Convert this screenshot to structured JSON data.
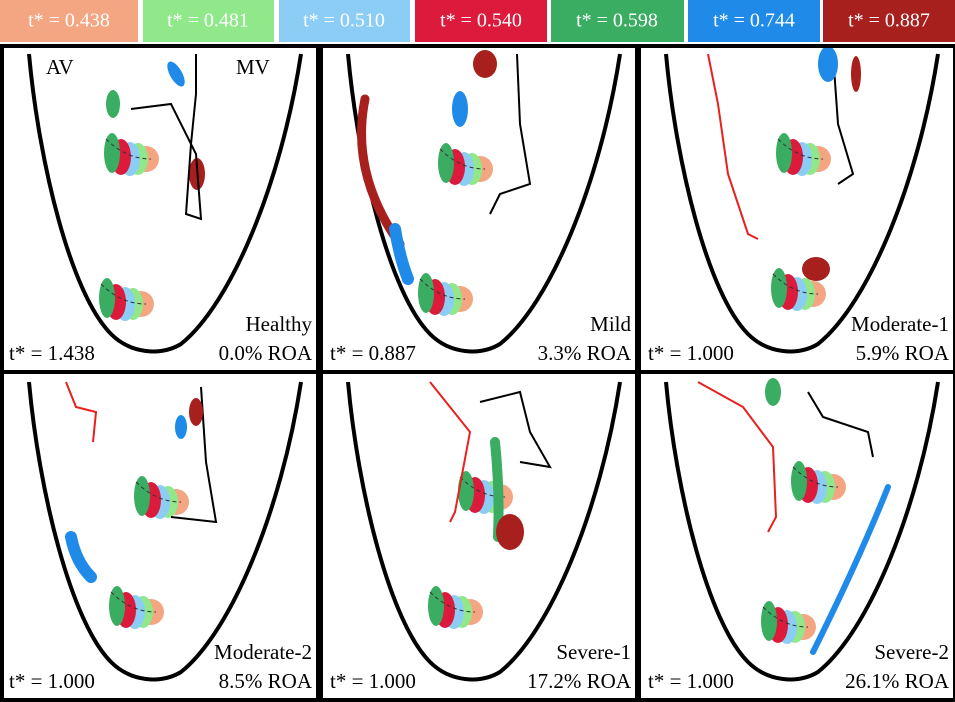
{
  "legend": [
    {
      "label": "t* = 0.438",
      "color": "#f4a582"
    },
    {
      "label": "t* = 0.481",
      "color": "#90e88a"
    },
    {
      "label": "t* = 0.510",
      "color": "#8ccdf5"
    },
    {
      "label": "t* = 0.540",
      "color": "#dc1a3c"
    },
    {
      "label": "t* = 0.598",
      "color": "#3aad62"
    },
    {
      "label": "t* = 0.744",
      "color": "#1f8ae8"
    },
    {
      "label": "t* = 0.887",
      "color": "#a8201e"
    }
  ],
  "panels": [
    {
      "name": "Healthy",
      "tstar": "t* = 1.438",
      "roa": "0.0% ROA",
      "valve_labels": [
        "AV",
        "MV"
      ]
    },
    {
      "name": "Mild",
      "tstar": "t* = 0.887",
      "roa": "3.3% ROA"
    },
    {
      "name": "Moderate-1",
      "tstar": "t* = 1.000",
      "roa": "5.9% ROA"
    },
    {
      "name": "Moderate-2",
      "tstar": "t* = 1.000",
      "roa": "8.5% ROA"
    },
    {
      "name": "Severe-1",
      "tstar": "t* = 1.000",
      "roa": "17.2% ROA"
    },
    {
      "name": "Severe-2",
      "tstar": "t* = 1.000",
      "roa": "26.1% ROA"
    }
  ]
}
